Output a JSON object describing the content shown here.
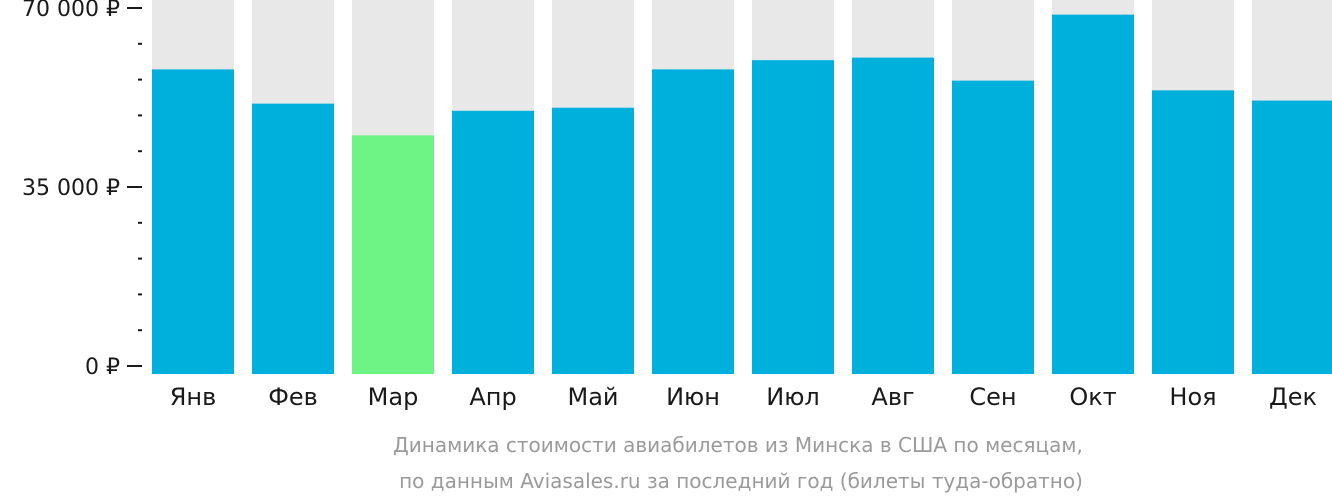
{
  "chart_data": {
    "type": "bar",
    "categories": [
      "Янв",
      "Фев",
      "Мар",
      "Апр",
      "Май",
      "Июн",
      "Июл",
      "Авг",
      "Сен",
      "Окт",
      "Ноя",
      "Дек"
    ],
    "values": [
      58000,
      51300,
      45100,
      49900,
      50500,
      58000,
      59800,
      60300,
      55800,
      68700,
      53900,
      51900
    ],
    "ylim": [
      0,
      70000
    ],
    "ticks": [
      {
        "value": 0,
        "label": "0 ₽"
      },
      {
        "value": 35000,
        "label": "35 000 ₽"
      },
      {
        "value": 70000,
        "label": "70 000 ₽"
      }
    ],
    "minor_tick_step": 7000,
    "highlight_index": 2,
    "colors": {
      "bar": "#00b0dc",
      "highlight": "#6ef385",
      "background_bar": "#e8e8e8",
      "axis": "#1a1a1a"
    },
    "caption_lines": [
      "Динамика стоимости авиабилетов из Минска в США по месяцам,",
      "по данным Aviasales.ru за последний год (билеты туда-обратно)"
    ]
  }
}
